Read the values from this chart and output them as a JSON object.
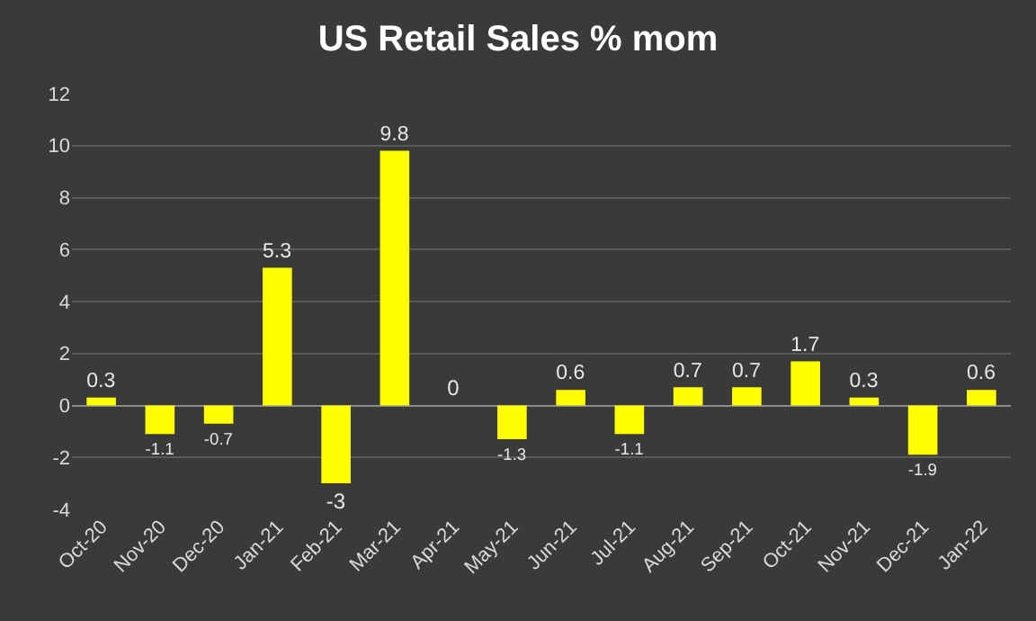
{
  "chart_data": {
    "type": "bar",
    "title": "US Retail Sales % mom",
    "categories": [
      "Oct-20",
      "Nov-20",
      "Dec-20",
      "Jan-21",
      "Feb-21",
      "Mar-21",
      "Apr-21",
      "May-21",
      "Jun-21",
      "Jul-21",
      "Aug-21",
      "Sep-21",
      "Oct-21",
      "Nov-21",
      "Dec-21",
      "Jan-22"
    ],
    "values": [
      0.3,
      -1.1,
      -0.7,
      5.3,
      -3,
      9.8,
      0,
      -1.3,
      0.6,
      -1.1,
      0.7,
      0.7,
      1.7,
      0.3,
      -1.9,
      0.6
    ],
    "color": "#ffff00",
    "ylim": [
      -4,
      12
    ],
    "yticks": [
      -4,
      -2,
      0,
      2,
      4,
      6,
      8,
      10,
      12
    ],
    "grid": "y",
    "data_labels": true,
    "legend": false
  }
}
